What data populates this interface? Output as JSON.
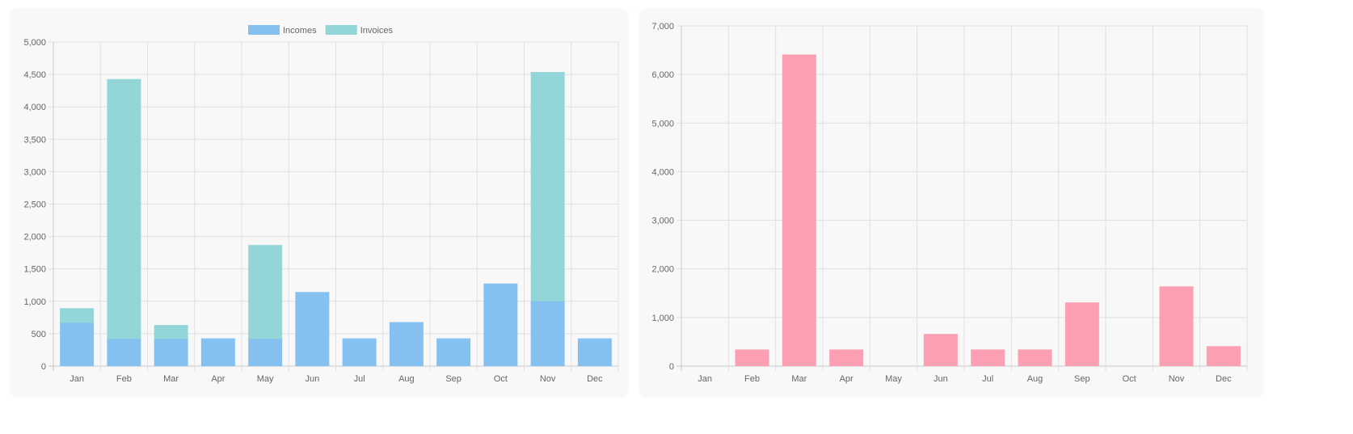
{
  "chart_data": [
    {
      "type": "bar",
      "stacked": true,
      "categories": [
        "Jan",
        "Feb",
        "Mar",
        "Apr",
        "May",
        "Jun",
        "Jul",
        "Aug",
        "Sep",
        "Oct",
        "Nov",
        "Dec"
      ],
      "series": [
        {
          "name": "Incomes",
          "color": "#85c1f0",
          "values": [
            670,
            420,
            420,
            420,
            420,
            1135,
            420,
            670,
            420,
            1265,
            1000,
            420
          ]
        },
        {
          "name": "Invoices",
          "color": "#92d6d8",
          "values": [
            215,
            4000,
            205,
            0,
            1440,
            0,
            0,
            0,
            0,
            0,
            3530,
            0
          ]
        }
      ],
      "ylim": [
        0,
        5000
      ],
      "yticks": [
        "0",
        "500",
        "1,000",
        "1,500",
        "2,000",
        "2,500",
        "3,000",
        "3,500",
        "4,000",
        "4,500",
        "5,000"
      ],
      "grid": true,
      "legend": "top"
    },
    {
      "type": "bar",
      "categories": [
        "Jan",
        "Feb",
        "Mar",
        "Apr",
        "May",
        "Jun",
        "Jul",
        "Aug",
        "Sep",
        "Oct",
        "Nov",
        "Dec"
      ],
      "series": [
        {
          "color": "#fc9fb2",
          "values": [
            0,
            330,
            6400,
            330,
            0,
            650,
            330,
            330,
            1300,
            0,
            1630,
            400
          ]
        }
      ],
      "ylim": [
        0,
        7000
      ],
      "yticks": [
        "0",
        "1,000",
        "2,000",
        "3,000",
        "4,000",
        "5,000",
        "6,000",
        "7,000"
      ],
      "grid": true
    }
  ]
}
